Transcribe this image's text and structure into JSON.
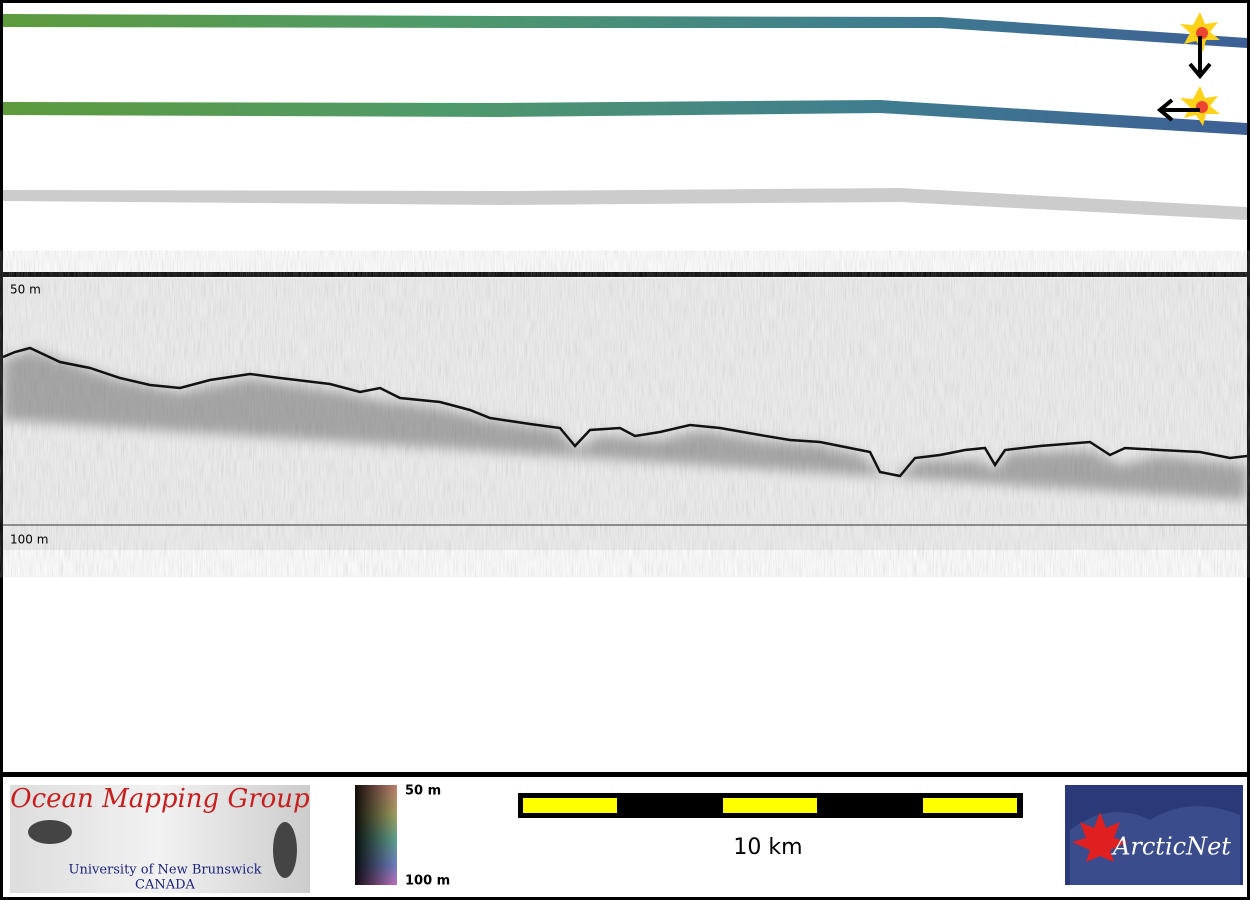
{
  "profile": {
    "depth_top_label": "50 m",
    "depth_bottom_label": "100 m"
  },
  "logos": {
    "omg_title": "Ocean Mapping Group",
    "omg_university": "University of New Brunswick",
    "omg_country": "CANADA",
    "arcticnet": "ArcticNet"
  },
  "colorbar": {
    "top_label": "50 m",
    "bottom_label": "100 m"
  },
  "scale_bar": {
    "label": "10 km"
  }
}
